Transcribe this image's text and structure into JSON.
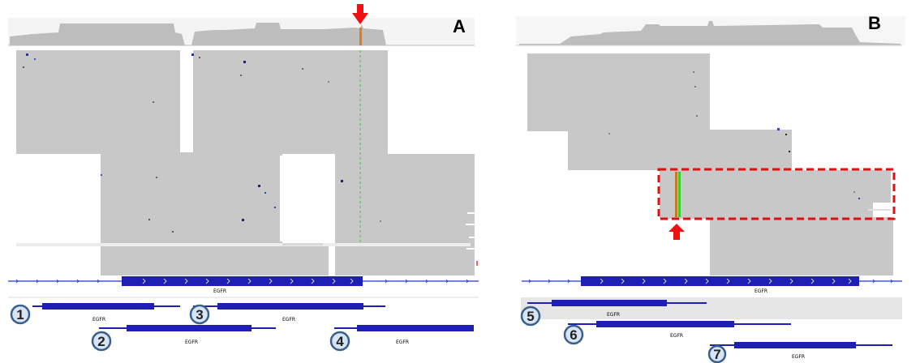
{
  "panels": {
    "a": {
      "label": "A",
      "gene_label": "EGFR"
    },
    "b": {
      "label": "B",
      "gene_label": "EGFR"
    }
  },
  "transcripts": [
    {
      "number": "1",
      "label": "EGFR"
    },
    {
      "number": "2",
      "label": "EGFR"
    },
    {
      "number": "3",
      "label": "EGFR"
    },
    {
      "number": "4",
      "label": "EGFR"
    },
    {
      "number": "5",
      "label": "EGFR"
    },
    {
      "number": "6",
      "label": "EGFR"
    },
    {
      "number": "7",
      "label": "EGFR"
    }
  ],
  "colors": {
    "read_gray": "#c8c8c8",
    "coverage_gray": "#bdbdbd",
    "gene_blue": "#1f1fb5",
    "track_blue": "#2233cc",
    "arrow_red": "#ee1111",
    "box_red": "#dd1111",
    "mismatch_green": "#33cc33",
    "circle_fill": "#d6e4f4",
    "circle_stroke": "#3a5f8a"
  },
  "icons": {
    "arrow_a": "down-arrow-icon",
    "arrow_b": "up-arrow-icon"
  }
}
